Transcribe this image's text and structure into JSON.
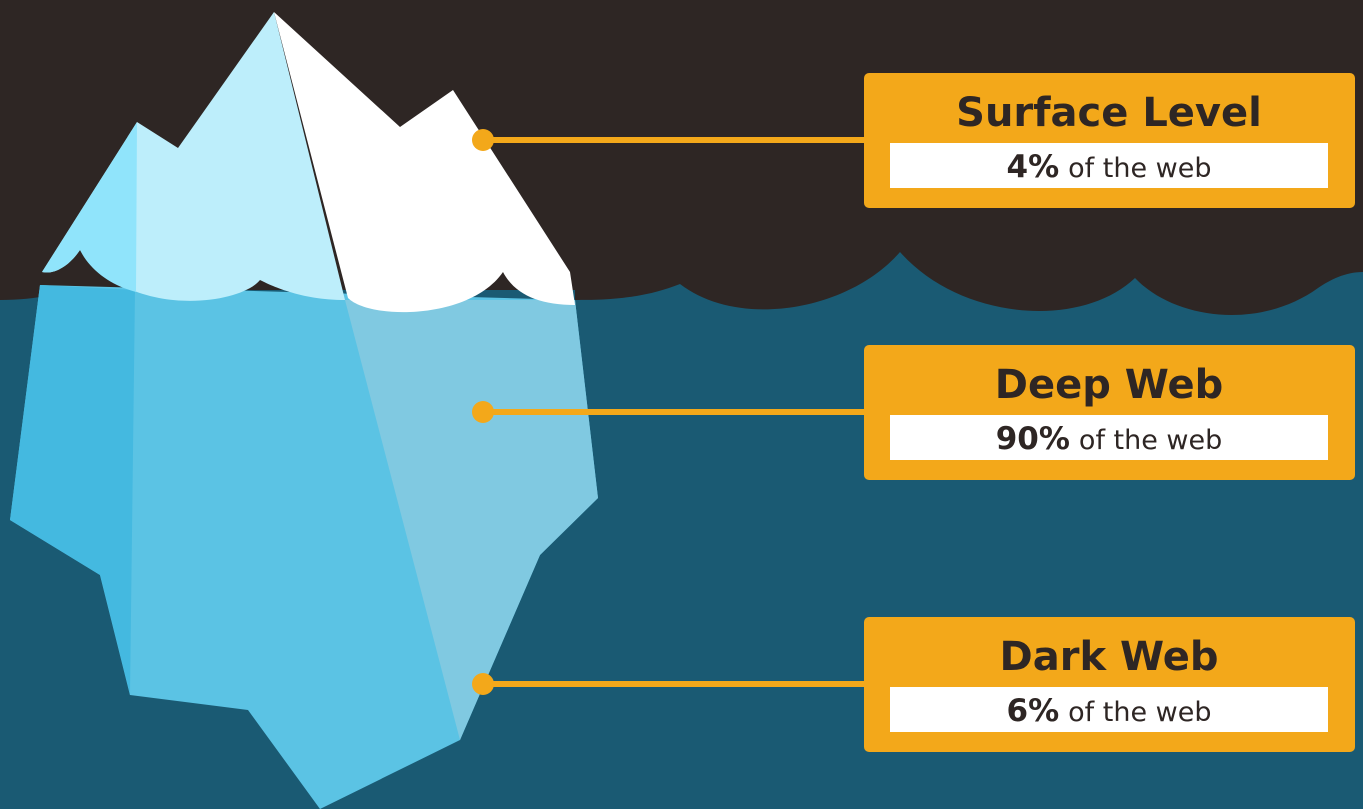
{
  "layers": [
    {
      "title": "Surface Level",
      "percent": "4%",
      "text": "of the web"
    },
    {
      "title": "Deep Web",
      "percent": "90%",
      "text": "of the web"
    },
    {
      "title": "Dark Web",
      "percent": "6%",
      "text": "of the web"
    }
  ]
}
